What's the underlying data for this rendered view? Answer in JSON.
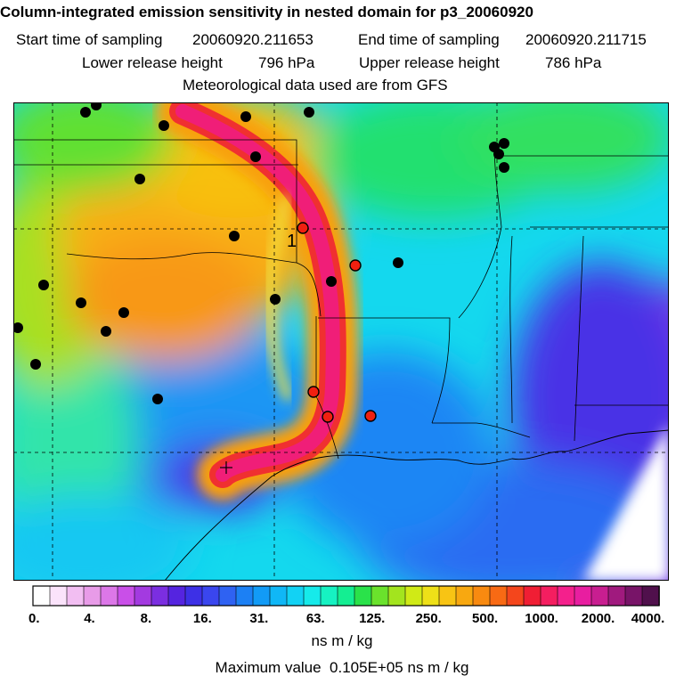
{
  "title": "Column-integrated emission sensitivity in nested domain for p3_20060920",
  "sampling": {
    "start_label": "Start time of sampling",
    "start_value": "20060920.211653",
    "end_label": "End time of sampling",
    "end_value": "20060920.211715"
  },
  "release": {
    "lower_label": "Lower release height",
    "lower_value": "796 hPa",
    "upper_label": "Upper release height",
    "upper_value": "786 hPa"
  },
  "met_source": "Meteorological data used are from GFS",
  "map": {
    "marker_label": "1"
  },
  "colorbar": {
    "ticks": [
      "0.",
      "4.",
      "8.",
      "16.",
      "31.",
      "63.",
      "125.",
      "250.",
      "500.",
      "1000.",
      "2000.",
      "4000."
    ],
    "colors": [
      "#ffffff",
      "#fbe3fb",
      "#f2bef2",
      "#e89be8",
      "#dc77e8",
      "#c94fe8",
      "#a33ae0",
      "#7b2ee0",
      "#5524e0",
      "#3d30e6",
      "#3a46ee",
      "#2f62f2",
      "#1c80f4",
      "#129bf6",
      "#10b7f6",
      "#12d2f4",
      "#16eaea",
      "#16f2c2",
      "#14ee92",
      "#2ae24a",
      "#6ae22c",
      "#a3e41e",
      "#d0ea16",
      "#eee018",
      "#f8c414",
      "#f8a810",
      "#f88a10",
      "#f86a14",
      "#f4461c",
      "#f01e34",
      "#f41e60",
      "#f4208c",
      "#e81ea0",
      "#c81e90",
      "#a01a7e",
      "#781468",
      "#50104c"
    ],
    "units": "ns m / kg"
  },
  "max_value": {
    "label": "Maximum value",
    "value": "0.105E+05 ns m / kg"
  }
}
